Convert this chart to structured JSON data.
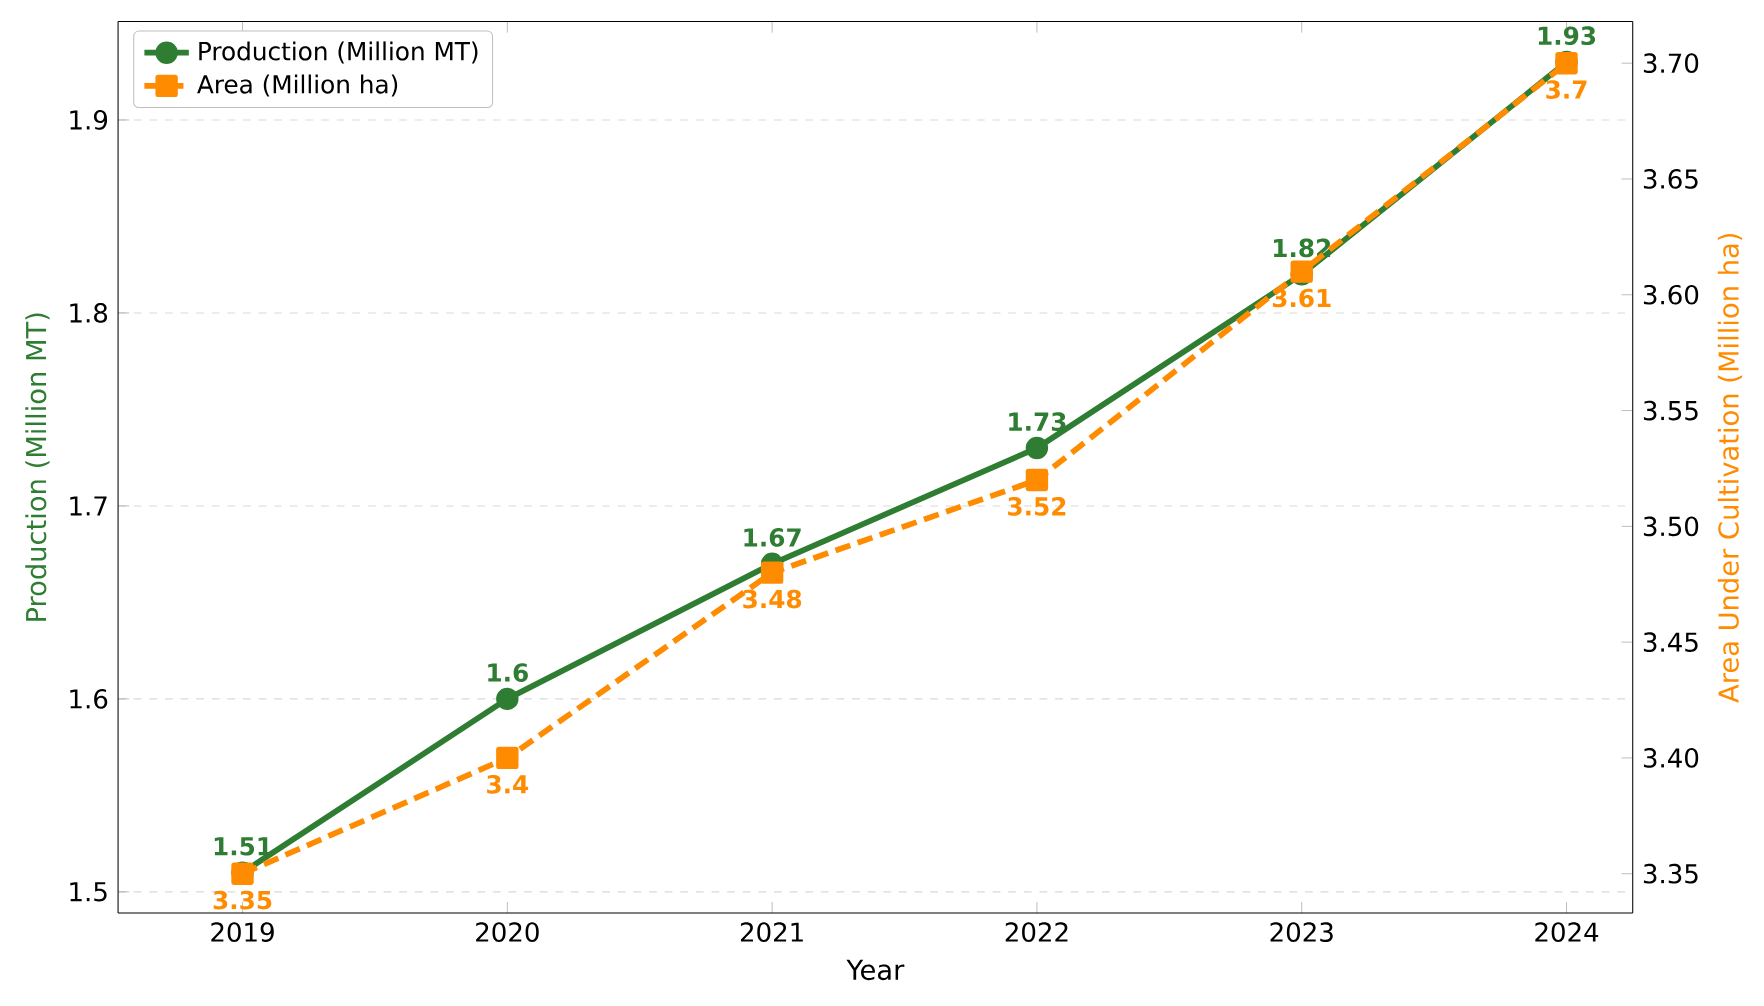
{
  "chart_data": {
    "type": "line",
    "xlabel": "Year",
    "ylabel": "Production (Million MT)",
    "y2label": "Area Under Cultivation (Million ha)",
    "x": [
      2019,
      2020,
      2021,
      2022,
      2023,
      2024
    ],
    "series": [
      {
        "name": "Production (Million MT)",
        "color": "#2e7d32",
        "values": [
          1.51,
          1.6,
          1.67,
          1.73,
          1.82,
          1.93
        ],
        "marker": "circle",
        "line_style": "solid"
      },
      {
        "name": "Area (Million ha)",
        "color": "#ff8c00",
        "values": [
          3.35,
          3.4,
          3.48,
          3.52,
          3.61,
          3.7
        ],
        "axis": "y2",
        "marker": "square",
        "line_style": "dashed"
      }
    ],
    "xlim": [
      2018.53,
      2024.25
    ],
    "xticks": [
      2019,
      2020,
      2021,
      2022,
      2023,
      2024
    ],
    "ylim": [
      1.489,
      1.951
    ],
    "yticks": [
      1.5,
      1.6,
      1.7,
      1.8,
      1.9
    ],
    "y2lim": [
      3.333,
      3.718
    ],
    "y2ticks": [
      3.35,
      {
        "value": 3.4,
        "label": "3.40"
      },
      3.45,
      {
        "value": 3.5,
        "label": "3.50"
      },
      3.55,
      {
        "value": 3.6,
        "label": "3.60"
      },
      3.65,
      {
        "value": 3.7,
        "label": "3.70"
      }
    ],
    "grid": "y",
    "legend": "top left",
    "data_labels": true
  }
}
